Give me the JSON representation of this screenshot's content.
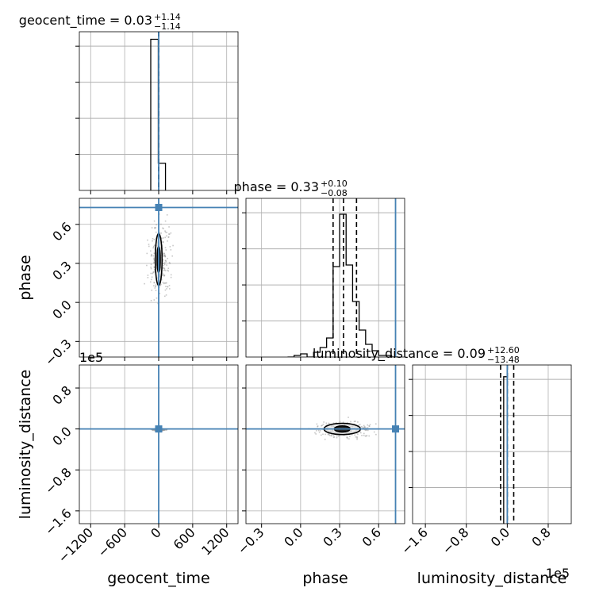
{
  "chart_data": {
    "type": "corner",
    "parameters": [
      "geocent_time",
      "phase",
      "luminosity_distance"
    ],
    "truths": {
      "geocent_time": 0,
      "phase": 0.73,
      "luminosity_distance": 0
    },
    "colors": {
      "truth": "#4682b4",
      "hist": "#000000",
      "grid": "#b0b0b0",
      "samples": "#9a9a9a"
    },
    "titles": [
      {
        "param": "geocent_time",
        "text": "geocent_time = 0.03",
        "sup": "+1.14",
        "sub": "−1.14"
      },
      {
        "param": "phase",
        "text": "phase = 0.33",
        "sup": "+0.10",
        "sub": "−0.08"
      },
      {
        "param": "luminosity_distance",
        "text": "luminosity_distance = 0.09",
        "sup": "+12.60",
        "sub": "−13.48"
      }
    ],
    "axis_labels": {
      "x": [
        "geocent_time",
        "phase",
        "luminosity_distance"
      ],
      "y": [
        "phase",
        "luminosity_distance"
      ]
    },
    "offset_texts": {
      "y_luminosity_distance": "1e5",
      "x_luminosity_distance": "1e5"
    },
    "ranges": {
      "geocent_time": [
        -1400,
        1400
      ],
      "phase": [
        -0.42,
        0.8
      ],
      "luminosity_distance": [
        -1.85,
        1.25
      ]
    },
    "ticks": {
      "geocent_time": {
        "values": [
          -1200,
          -600,
          0,
          600,
          1200
        ],
        "labels": [
          "−1200",
          "−600",
          "0",
          "600",
          "1200"
        ]
      },
      "phase": {
        "values": [
          -0.3,
          0.0,
          0.3,
          0.6
        ],
        "labels": [
          "−0.3",
          "0.0",
          "0.3",
          "0.6"
        ]
      },
      "luminosity_distance": {
        "values": [
          -1.6,
          -0.8,
          0.0,
          0.8
        ],
        "labels": [
          "−1.6",
          "−0.8",
          "0.0",
          "0.8"
        ]
      }
    },
    "histograms": {
      "geocent_time": {
        "edges": [
          -140,
          -7,
          120
        ],
        "counts": [
          1.0,
          0.18
        ],
        "quantiles": [
          -1.1,
          0.03,
          1.17
        ],
        "ymax": 1.05
      },
      "phase": {
        "edges": [
          -0.1,
          -0.05,
          0.0,
          0.05,
          0.1,
          0.15,
          0.2,
          0.25,
          0.3,
          0.35,
          0.4,
          0.45,
          0.5,
          0.55,
          0.6,
          0.65,
          0.7,
          0.75
        ],
        "counts": [
          0.0,
          0.01,
          0.02,
          0.0,
          0.03,
          0.06,
          0.12,
          0.57,
          0.9,
          0.58,
          0.35,
          0.17,
          0.08,
          0.04,
          0.01,
          0.01,
          0.0
        ],
        "quantiles": [
          0.25,
          0.33,
          0.43
        ],
        "ymax": 1.0
      },
      "luminosity_distance": {
        "edges": [
          -0.07,
          0.0,
          0.03
        ],
        "counts": [
          1.0,
          0.0
        ],
        "quantiles": [
          -0.13,
          0.0009,
          0.126
        ],
        "ymax": 1.08
      }
    },
    "contours": {
      "phase_vs_geocent_time": {
        "center": [
          0,
          0.33
        ],
        "levels": [
          {
            "rx": 60,
            "ry": 0.2
          },
          {
            "rx": 28,
            "ry": 0.1
          }
        ]
      },
      "lum_vs_geocent_time": {
        "center": [
          -5,
          0.0
        ],
        "levels": [
          {
            "rx": 35,
            "ry": 0.012
          }
        ]
      },
      "lum_vs_phase": {
        "center": [
          0.32,
          0.0
        ],
        "levels": [
          {
            "rx": 0.14,
            "ry": 0.11
          },
          {
            "rx": 0.06,
            "ry": 0.06
          }
        ]
      }
    }
  }
}
